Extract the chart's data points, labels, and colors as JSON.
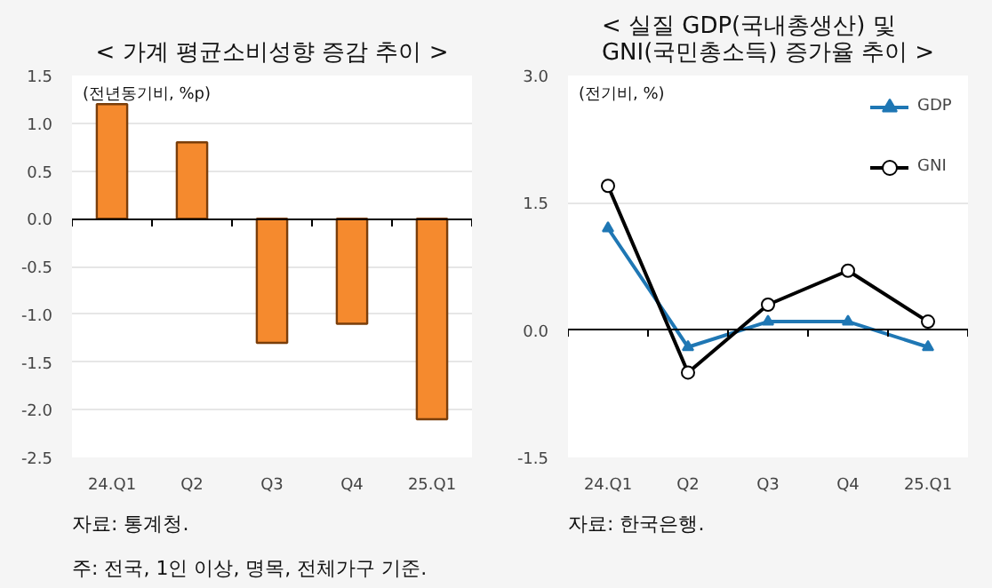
{
  "chart_data": [
    {
      "type": "bar",
      "title": "< 가계 평균소비성향 증감 추이 >",
      "categories": [
        "24.Q1",
        "Q2",
        "Q3",
        "Q4",
        "25.Q1"
      ],
      "series": [
        {
          "color": "#f58a2e",
          "values": [
            1.2,
            0.8,
            -1.3,
            -1.1,
            -2.1
          ]
        }
      ],
      "ylim": [
        -2.5,
        1.5
      ],
      "yticks": [
        -2.5,
        {
          "value": -2,
          "label": "-2.0"
        },
        -1.5,
        {
          "value": -1,
          "label": "-1.0"
        },
        -0.5,
        {
          "value": 0,
          "label": "0.0"
        },
        0.5,
        {
          "value": 1,
          "label": "1.0"
        },
        1.5
      ],
      "grid": "y",
      "legend": false,
      "annotations": [
        "(전년동기비, %p)",
        "자료: 통계청.",
        "주: 전국, 1인 이상, 명목, 전체가구 기준."
      ]
    },
    {
      "type": "line",
      "title": "< 실질 GDP(국내총생산) 및\nGNI(국민총소득) 증가율 추이 >",
      "categories": [
        "24.Q1",
        "Q2",
        "Q3",
        "Q4",
        "25.Q1"
      ],
      "series": [
        {
          "name": "GDP",
          "color": "#1f77b4",
          "marker": "triangle",
          "values": [
            1.2,
            -0.2,
            0.1,
            0.1,
            -0.2
          ]
        },
        {
          "name": "GNI",
          "color": "#000000",
          "marker": "circle",
          "values": [
            1.7,
            -0.5,
            0.3,
            0.7,
            0.1
          ]
        }
      ],
      "ylim": [
        -1.5,
        3.0
      ],
      "yticks": [
        -1.5,
        {
          "value": 0,
          "label": "0.0"
        },
        1.5,
        {
          "value": 3,
          "label": "3.0"
        }
      ],
      "grid": "y",
      "legend": "top right",
      "annotations": [
        "(전기비, %)",
        "자료: 한국은행."
      ]
    }
  ]
}
